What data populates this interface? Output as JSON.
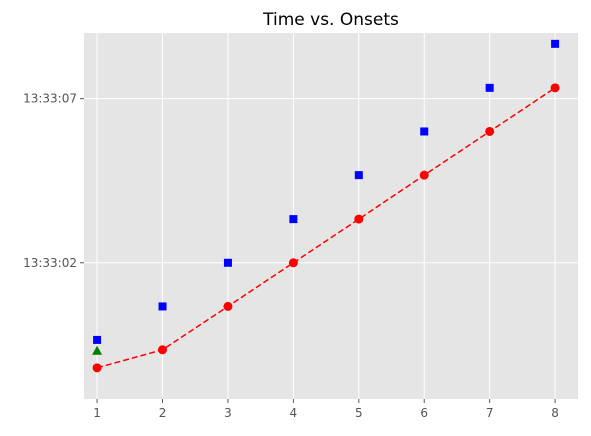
{
  "chart_data": {
    "type": "scatter",
    "title": "Time vs. Onsets",
    "xlabel": "",
    "ylabel": "",
    "xlim": [
      0.8,
      8.35
    ],
    "ylim": [
      -2.15,
      9.0
    ],
    "x_ticks": [
      1,
      2,
      3,
      4,
      5,
      6,
      7,
      8
    ],
    "x_tick_labels": [
      "1",
      "2",
      "3",
      "4",
      "5",
      "6",
      "7",
      "8"
    ],
    "y_ticks": [
      2,
      7
    ],
    "y_tick_labels": [
      "13:33:02",
      "13:33:07"
    ],
    "grid": true,
    "legend": "none",
    "series": [
      {
        "style": "dashed-line-circle",
        "color": "#ff0000",
        "x": [
          1,
          2,
          3,
          4,
          5,
          6,
          7,
          8
        ],
        "y": [
          -1.2,
          -0.65,
          0.67,
          2.0,
          3.33,
          4.67,
          6.0,
          7.33
        ]
      },
      {
        "style": "square",
        "color": "#0000ff",
        "x": [
          1,
          2,
          3,
          4,
          5,
          6,
          7,
          8
        ],
        "y": [
          -0.35,
          0.67,
          2.0,
          3.33,
          4.67,
          6.0,
          7.33,
          8.67
        ]
      },
      {
        "style": "triangle",
        "color": "#008000",
        "x": [
          1
        ],
        "y": [
          -0.68
        ]
      }
    ]
  }
}
